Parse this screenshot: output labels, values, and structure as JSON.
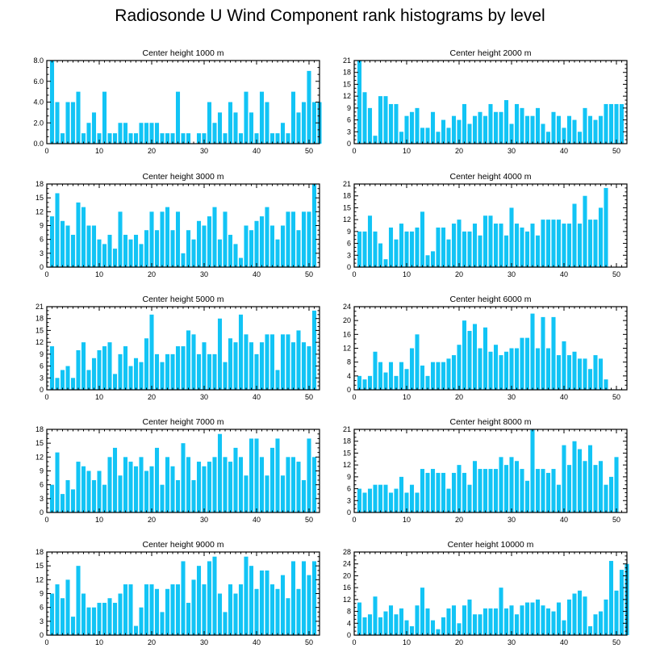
{
  "title": "Radiosonde U Wind Component rank histograms by level",
  "colors": {
    "bar": "#12c4f5",
    "axis": "#000000"
  },
  "chart_data": [
    {
      "type": "bar",
      "title": "Center height 1000 m",
      "xlim": [
        0,
        52
      ],
      "ylim": [
        0,
        8
      ],
      "xticks": [
        0,
        10,
        20,
        30,
        40,
        50
      ],
      "xtick_labels": [
        "0",
        "10",
        "20",
        "30",
        "40",
        "50"
      ],
      "yticks": [
        0,
        2,
        4,
        6,
        8
      ],
      "ytick_labels": [
        "0.0",
        "2.0",
        "4.0",
        "6.0",
        "8.0"
      ],
      "values": [
        8,
        4,
        1,
        4,
        4,
        5,
        1,
        2,
        3,
        1,
        5,
        1,
        1,
        2,
        2,
        1,
        1,
        2,
        2,
        2,
        2,
        1,
        1,
        1,
        5,
        1,
        1,
        0,
        1,
        1,
        4,
        2,
        3,
        1,
        4,
        3,
        1,
        5,
        3,
        1,
        5,
        4,
        1,
        1,
        2,
        1,
        5,
        3,
        4,
        7,
        4,
        4
      ]
    },
    {
      "type": "bar",
      "title": "Center height 2000 m",
      "xlim": [
        0,
        52
      ],
      "ylim": [
        0,
        21
      ],
      "xticks": [
        0,
        10,
        20,
        30,
        40,
        50
      ],
      "xtick_labels": [
        "0",
        "10",
        "20",
        "30",
        "40",
        "50"
      ],
      "yticks": [
        0,
        3,
        6,
        9,
        12,
        15,
        18,
        21
      ],
      "ytick_labels": [
        "0",
        "3",
        "6",
        "9",
        "12",
        "15",
        "18",
        "21"
      ],
      "values": [
        21,
        13,
        9,
        2,
        12,
        12,
        10,
        10,
        3,
        7,
        8,
        9,
        4,
        4,
        8,
        3,
        6,
        4,
        7,
        6,
        10,
        5,
        7,
        8,
        7,
        10,
        8,
        8,
        11,
        5,
        10,
        9,
        7,
        7,
        9,
        5,
        3,
        8,
        7,
        4,
        7,
        6,
        3,
        9,
        7,
        6,
        7,
        10,
        10,
        10,
        10
      ]
    },
    {
      "type": "bar",
      "title": "Center height 3000 m",
      "xlim": [
        0,
        52
      ],
      "ylim": [
        0,
        18
      ],
      "xticks": [
        0,
        10,
        20,
        30,
        40,
        50
      ],
      "xtick_labels": [
        "0",
        "10",
        "20",
        "30",
        "40",
        "50"
      ],
      "yticks": [
        0,
        3,
        6,
        9,
        12,
        15,
        18
      ],
      "ytick_labels": [
        "0",
        "3",
        "6",
        "9",
        "12",
        "15",
        "18"
      ],
      "values": [
        11,
        16,
        10,
        9,
        7,
        14,
        13,
        9,
        9,
        6,
        5,
        7,
        4,
        12,
        7,
        6,
        7,
        5,
        8,
        12,
        8,
        12,
        13,
        8,
        12,
        3,
        8,
        6,
        10,
        9,
        11,
        13,
        6,
        12,
        7,
        5,
        2,
        9,
        8,
        10,
        11,
        13,
        9,
        6,
        9,
        12,
        12,
        8,
        12,
        12,
        18
      ]
    },
    {
      "type": "bar",
      "title": "Center height 4000 m",
      "xlim": [
        0,
        52
      ],
      "ylim": [
        0,
        21
      ],
      "xticks": [
        0,
        10,
        20,
        30,
        40,
        50
      ],
      "xtick_labels": [
        "0",
        "10",
        "20",
        "30",
        "40",
        "50"
      ],
      "yticks": [
        0,
        3,
        6,
        9,
        12,
        15,
        18,
        21
      ],
      "ytick_labels": [
        "0",
        "3",
        "6",
        "9",
        "12",
        "15",
        "18",
        "21"
      ],
      "values": [
        9,
        9,
        13,
        9,
        6,
        2,
        10,
        7,
        11,
        9,
        9,
        10,
        14,
        3,
        4,
        10,
        10,
        7,
        11,
        12,
        9,
        9,
        11,
        8,
        13,
        13,
        11,
        11,
        8,
        15,
        11,
        10,
        9,
        11,
        8,
        12,
        12,
        12,
        12,
        11,
        11,
        16,
        11,
        18,
        12,
        12,
        15,
        20
      ]
    },
    {
      "type": "bar",
      "title": "Center height 5000 m",
      "xlim": [
        0,
        52
      ],
      "ylim": [
        0,
        21
      ],
      "xticks": [
        0,
        10,
        20,
        30,
        40,
        50
      ],
      "xtick_labels": [
        "0",
        "10",
        "20",
        "30",
        "40",
        "50"
      ],
      "yticks": [
        0,
        3,
        6,
        9,
        12,
        15,
        18,
        21
      ],
      "ytick_labels": [
        "0",
        "3",
        "6",
        "9",
        "12",
        "15",
        "18",
        "21"
      ],
      "values": [
        11,
        3,
        5,
        6,
        3,
        10,
        12,
        5,
        8,
        10,
        11,
        12,
        4,
        9,
        11,
        6,
        8,
        7,
        13,
        19,
        9,
        7,
        9,
        9,
        11,
        11,
        15,
        14,
        9,
        12,
        9,
        9,
        18,
        7,
        13,
        12,
        19,
        14,
        12,
        9,
        12,
        14,
        14,
        5,
        14,
        14,
        12,
        15,
        12,
        11,
        20
      ]
    },
    {
      "type": "bar",
      "title": "Center height 6000 m",
      "xlim": [
        0,
        52
      ],
      "ylim": [
        0,
        24
      ],
      "xticks": [
        0,
        10,
        20,
        30,
        40,
        50
      ],
      "xtick_labels": [
        "0",
        "10",
        "20",
        "30",
        "40",
        "50"
      ],
      "yticks": [
        0,
        4,
        8,
        12,
        16,
        20,
        24
      ],
      "ytick_labels": [
        "0",
        "4",
        "8",
        "12",
        "16",
        "20",
        "24"
      ],
      "values": [
        4,
        3,
        4,
        11,
        8,
        5,
        8,
        4,
        8,
        6,
        12,
        16,
        7,
        4,
        8,
        8,
        8,
        9,
        10,
        13,
        20,
        17,
        19,
        12,
        18,
        11,
        13,
        10,
        11,
        12,
        12,
        15,
        15,
        22,
        12,
        21,
        12,
        21,
        10,
        14,
        10,
        11,
        9,
        9,
        6,
        10,
        9,
        3
      ]
    },
    {
      "type": "bar",
      "title": "Center height 7000 m",
      "xlim": [
        0,
        52
      ],
      "ylim": [
        0,
        18
      ],
      "xticks": [
        0,
        10,
        20,
        30,
        40,
        50
      ],
      "xtick_labels": [
        "0",
        "10",
        "20",
        "30",
        "40",
        "50"
      ],
      "yticks": [
        0,
        3,
        6,
        9,
        12,
        15,
        18
      ],
      "ytick_labels": [
        "0",
        "3",
        "6",
        "9",
        "12",
        "15",
        "18"
      ],
      "values": [
        6,
        13,
        4,
        7,
        5,
        11,
        10,
        9,
        7,
        9,
        6,
        12,
        14,
        8,
        12,
        11,
        10,
        12,
        9,
        10,
        14,
        6,
        12,
        10,
        7,
        15,
        12,
        7,
        11,
        10,
        11,
        12,
        17,
        12,
        11,
        14,
        12,
        8,
        16,
        16,
        12,
        8,
        14,
        16,
        8,
        12,
        12,
        11,
        7,
        16,
        12
      ]
    },
    {
      "type": "bar",
      "title": "Center height 8000 m",
      "xlim": [
        0,
        52
      ],
      "ylim": [
        0,
        21
      ],
      "xticks": [
        0,
        10,
        20,
        30,
        40,
        50
      ],
      "xtick_labels": [
        "0",
        "10",
        "20",
        "30",
        "40",
        "50"
      ],
      "yticks": [
        0,
        3,
        6,
        9,
        12,
        15,
        18,
        21
      ],
      "ytick_labels": [
        "0",
        "3",
        "6",
        "9",
        "12",
        "15",
        "18",
        "21"
      ],
      "values": [
        6,
        5,
        6,
        7,
        7,
        7,
        5,
        6,
        9,
        5,
        7,
        5,
        11,
        10,
        11,
        10,
        10,
        6,
        10,
        12,
        10,
        7,
        13,
        11,
        11,
        11,
        11,
        14,
        12,
        14,
        13,
        11,
        8,
        21,
        11,
        11,
        10,
        11,
        7,
        17,
        12,
        18,
        16,
        13,
        17,
        12,
        13,
        7,
        9,
        14
      ]
    },
    {
      "type": "bar",
      "title": "Center height 9000 m",
      "xlim": [
        0,
        52
      ],
      "ylim": [
        0,
        18
      ],
      "xticks": [
        0,
        10,
        20,
        30,
        40,
        50
      ],
      "xtick_labels": [
        "0",
        "10",
        "20",
        "30",
        "40",
        "50"
      ],
      "yticks": [
        0,
        3,
        6,
        9,
        12,
        15,
        18
      ],
      "ytick_labels": [
        "0",
        "3",
        "6",
        "9",
        "12",
        "15",
        "18"
      ],
      "values": [
        9,
        11,
        8,
        12,
        4,
        15,
        9,
        6,
        6,
        7,
        7,
        8,
        7,
        9,
        11,
        11,
        2,
        6,
        11,
        11,
        10,
        5,
        10,
        11,
        11,
        16,
        7,
        12,
        15,
        11,
        16,
        17,
        9,
        5,
        11,
        9,
        11,
        17,
        15,
        10,
        14,
        14,
        11,
        10,
        13,
        8,
        16,
        10,
        16,
        13,
        16
      ]
    },
    {
      "type": "bar",
      "title": "Center height 10000 m",
      "xlim": [
        0,
        52
      ],
      "ylim": [
        0,
        28
      ],
      "xticks": [
        0,
        10,
        20,
        30,
        40,
        50
      ],
      "xtick_labels": [
        "0",
        "10",
        "20",
        "30",
        "40",
        "50"
      ],
      "yticks": [
        0,
        4,
        8,
        12,
        16,
        20,
        24,
        28
      ],
      "ytick_labels": [
        "0",
        "4",
        "8",
        "12",
        "16",
        "20",
        "24",
        "28"
      ],
      "values": [
        11,
        6,
        7,
        13,
        6,
        8,
        10,
        7,
        9,
        5,
        3,
        10,
        16,
        9,
        5,
        2,
        6,
        9,
        10,
        4,
        10,
        12,
        7,
        7,
        9,
        9,
        9,
        16,
        9,
        10,
        7,
        10,
        11,
        11,
        12,
        10,
        9,
        8,
        11,
        5,
        12,
        14,
        15,
        13,
        3,
        7,
        8,
        12,
        25,
        15,
        22,
        24
      ]
    }
  ]
}
